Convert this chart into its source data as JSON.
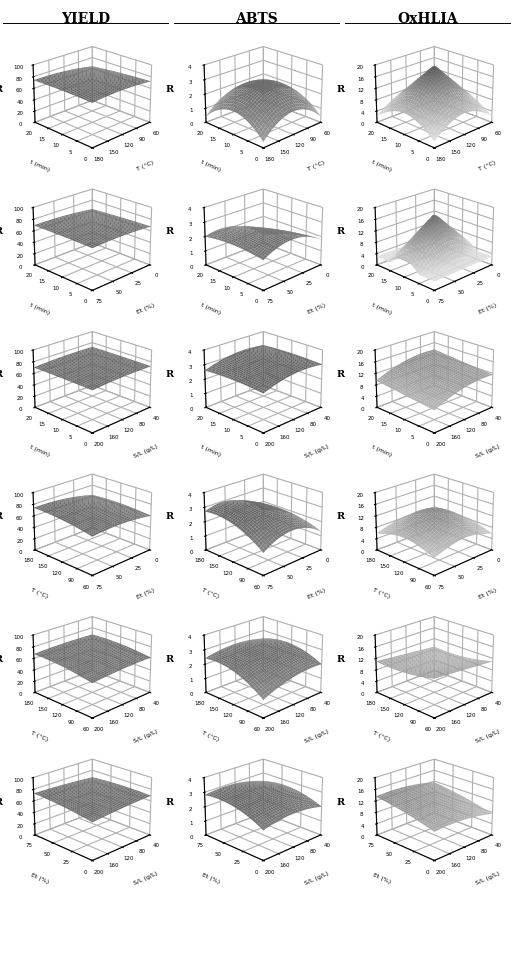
{
  "col_titles": [
    "YIELD",
    "ABTS",
    "OxHLIA"
  ],
  "row_configs": [
    {
      "xlabel": "T (°C)",
      "ylabel": "t (min)",
      "x_range": [
        60,
        180
      ],
      "y_range": [
        0,
        20
      ]
    },
    {
      "xlabel": "Et (%)",
      "ylabel": "t (min)",
      "x_range": [
        0,
        75
      ],
      "y_range": [
        0,
        20
      ]
    },
    {
      "xlabel": "S/L (g/L)",
      "ylabel": "t (min)",
      "x_range": [
        40,
        200
      ],
      "y_range": [
        0,
        20
      ]
    },
    {
      "xlabel": "Et (%)",
      "ylabel": "T (°C)",
      "x_range": [
        0,
        75
      ],
      "y_range": [
        60,
        180
      ]
    },
    {
      "xlabel": "S/L (g/L)",
      "ylabel": "T (°C)",
      "x_range": [
        40,
        200
      ],
      "y_range": [
        60,
        180
      ]
    },
    {
      "xlabel": "S/L (g/L)",
      "ylabel": "Et (%)",
      "x_range": [
        40,
        200
      ],
      "y_range": [
        0,
        75
      ]
    }
  ],
  "yield_zlim": [
    0,
    100
  ],
  "abts_zlim": [
    0,
    4
  ],
  "oxhlia_zlim": [
    0,
    20
  ],
  "bg_color": "#ffffff",
  "surfaces": {
    "yield": {
      "0": {
        "b0": 75,
        "bx": 3,
        "by": -2,
        "bxx": -3,
        "byy": -1,
        "bxy": 2
      },
      "1": {
        "b0": 70,
        "bx": 2,
        "by": -1,
        "bxx": -2,
        "byy": -0.5,
        "bxy": 1
      },
      "2": {
        "b0": 73,
        "bx": -1,
        "by": 0,
        "bxx": -1.5,
        "byy": -0.3,
        "bxy": 0
      },
      "3": {
        "b0": 72,
        "bx": 4,
        "by": 3,
        "bxx": -4,
        "byy": -3,
        "bxy": 2
      },
      "4": {
        "b0": 68,
        "bx": -1,
        "by": 4,
        "bxx": -1.5,
        "byy": -3,
        "bxy": 1
      },
      "5": {
        "b0": 71,
        "bx": 0,
        "by": 2,
        "bxx": -1,
        "byy": -2,
        "bxy": 3
      }
    },
    "abts": {
      "0": {
        "type": "valley",
        "b0": 2.8,
        "bx": 0,
        "by": 0,
        "bxx": -1.2,
        "byy": -1.2,
        "bxy": 0
      },
      "1": {
        "type": "curved",
        "b0": 2.5,
        "bx": 0.4,
        "by": -0.3,
        "bxx": -0.7,
        "byy": -0.2,
        "bxy": 0.3
      },
      "2": {
        "type": "flat",
        "b0": 3.2,
        "bx": -0.2,
        "by": 0,
        "bxx": -0.3,
        "byy": -0.1,
        "bxy": 0
      },
      "3": {
        "type": "curved",
        "b0": 3.0,
        "bx": 0.4,
        "by": 0.3,
        "bxx": -0.8,
        "byy": -0.5,
        "bxy": 0.3
      },
      "4": {
        "type": "curved",
        "b0": 2.8,
        "bx": -0.2,
        "by": 0.4,
        "bxx": -0.3,
        "byy": -0.5,
        "bxy": 0.2
      },
      "5": {
        "type": "curved",
        "b0": 3.0,
        "bx": 0.1,
        "by": 0.3,
        "bxx": -0.3,
        "byy": -0.4,
        "bxy": 0.1
      }
    },
    "oxhlia": {
      "0": {
        "type": "tent",
        "peak": 20,
        "base": 2
      },
      "1": {
        "type": "tent_x",
        "peak": 18,
        "base": 3
      },
      "2": {
        "type": "slope",
        "b0": 12,
        "bx": -2,
        "by": 1,
        "bxx": -1.5,
        "byy": 0,
        "bxy": 0
      },
      "3": {
        "type": "bell",
        "peak": 14,
        "base": 4
      },
      "4": {
        "type": "slope2",
        "b0": 10,
        "bx": 1,
        "by": -1,
        "bxx": 0,
        "byy": 1,
        "bxy": 0
      },
      "5": {
        "type": "slope3",
        "b0": 12,
        "bx": 1,
        "by": 2,
        "bxx": -1,
        "byy": -0.5,
        "bxy": 0
      }
    }
  }
}
